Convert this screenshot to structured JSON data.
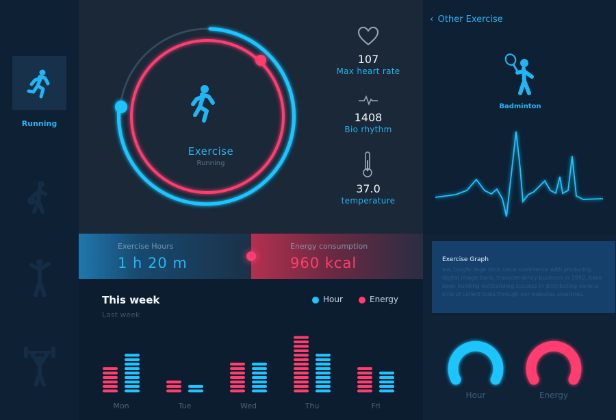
{
  "sidebar": {
    "items": [
      {
        "label": "Running",
        "icon": "running-icon",
        "active": true
      },
      {
        "label": "",
        "icon": "basketball-icon",
        "active": false
      },
      {
        "label": "",
        "icon": "athlete-icon",
        "active": false
      },
      {
        "label": "",
        "icon": "weightlifting-icon",
        "active": false
      }
    ]
  },
  "exercise": {
    "title": "Exercise",
    "subtitle": "Running",
    "icon": "running-icon"
  },
  "stats": [
    {
      "value": "107",
      "label": "Max heart rate",
      "icon": "heart-icon"
    },
    {
      "value": "1408",
      "label": "Bio rhythm",
      "icon": "pulse-icon"
    },
    {
      "value": "37.0",
      "label": "temperature",
      "icon": "thermometer-icon"
    }
  ],
  "metrics": {
    "hours": {
      "title": "Exercise Hours",
      "value": "1 h 20 m"
    },
    "energy": {
      "title": "Energy consumption",
      "value": "960 kcal"
    }
  },
  "week": {
    "title": "This week",
    "subtitle": "Last week",
    "legend": {
      "hour": "Hour",
      "energy": "Energy"
    }
  },
  "chart_data": {
    "type": "bar",
    "categories": [
      "Mon",
      "Tue",
      "Wed",
      "Thu",
      "Fri"
    ],
    "series": [
      {
        "name": "Energy",
        "values": [
          6,
          3,
          7,
          13,
          6
        ]
      },
      {
        "name": "Hour",
        "values": [
          9,
          2,
          7,
          9,
          5
        ]
      }
    ]
  },
  "right": {
    "back_label": "Other Exercise",
    "sport": {
      "label": "Badminton",
      "icon": "badminton-icon"
    },
    "graph_card": {
      "title": "Exercise Graph",
      "text": "we, tongfo ilage stick since commence with producing digital image bank, transcendency business in 1992, have been building outstanding success in distributing various kind of collect tools through our websites countries."
    },
    "gauges": [
      {
        "label": "Hour",
        "color": "#1ec5ff",
        "level": 0.72
      },
      {
        "label": "Energy",
        "color": "#ff3d6e",
        "level": 0.72
      }
    ]
  },
  "colors": {
    "blue": "#1ec5ff",
    "pink": "#ff3d6e",
    "label_blue": "#27b2ee"
  }
}
